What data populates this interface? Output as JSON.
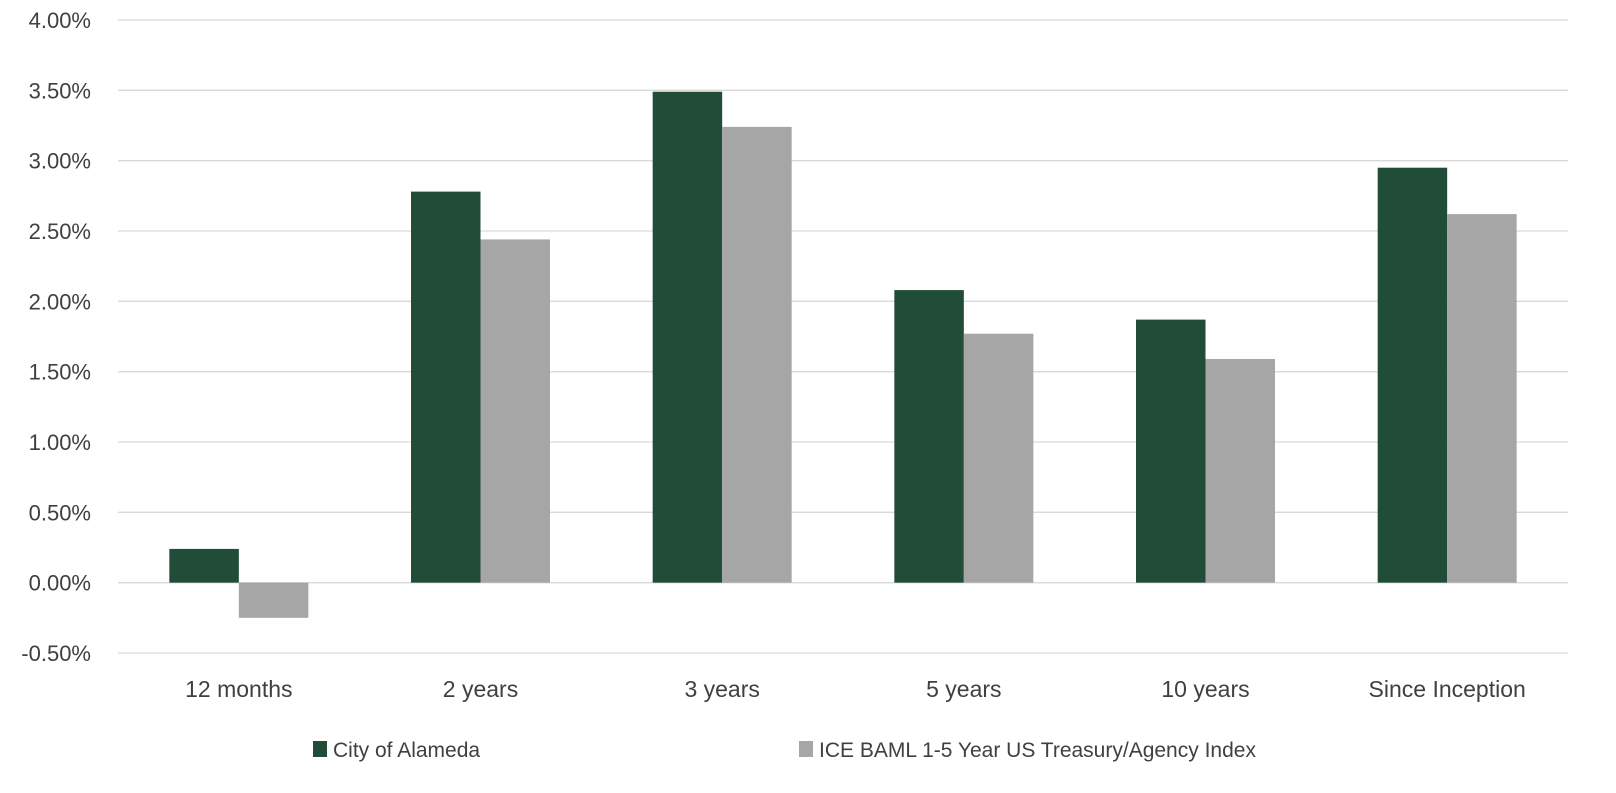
{
  "chart_data": {
    "type": "bar",
    "title": "",
    "xlabel": "",
    "ylabel": "",
    "categories": [
      "12 months",
      "2 years",
      "3 years",
      "5 years",
      "10 years",
      "Since Inception"
    ],
    "series": [
      {
        "name": "City of Alameda",
        "color": "#214d38",
        "values": [
          0.24,
          2.78,
          3.49,
          2.08,
          1.87,
          2.95
        ]
      },
      {
        "name": "ICE BAML 1-5 Year US Treasury/Agency Index",
        "color": "#a6a6a6",
        "values": [
          -0.25,
          2.44,
          3.24,
          1.77,
          1.59,
          2.62
        ]
      }
    ],
    "ylim": [
      -0.5,
      4.0
    ],
    "yticks": [
      -0.5,
      0.0,
      0.5,
      1.0,
      1.5,
      2.0,
      2.5,
      3.0,
      3.5,
      4.0
    ],
    "ytick_labels": [
      "-0.50%",
      "0.00%",
      "0.50%",
      "1.00%",
      "1.50%",
      "2.00%",
      "2.50%",
      "3.00%",
      "3.50%",
      "4.00%"
    ],
    "grid": true,
    "legend_position": "bottom",
    "gridline_color": "#d9d9d9",
    "text_color": "#404040"
  }
}
